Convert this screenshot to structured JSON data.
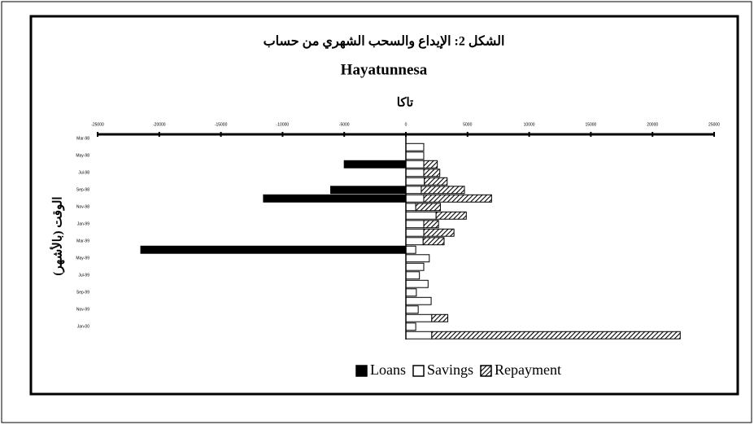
{
  "chart_data": {
    "type": "bar",
    "title": "الشكل 2: الإيداع والسحب الشهري من حساب",
    "subtitle": "Hayatunnesa",
    "x_label": "تاكا",
    "y_label": "الوقت (بالأشهر)",
    "categories": [
      "Mar-98",
      null,
      "May-98",
      null,
      "Jul-98",
      null,
      "Sep-98",
      null,
      "Nov-98",
      null,
      "Jan-99",
      null,
      "Mar-99",
      null,
      "May-99",
      null,
      "Jul-99",
      null,
      "Sep-99",
      null,
      "Nov-99",
      null,
      "Jan-00",
      null
    ],
    "series": [
      {
        "name": "Loans",
        "color": "#000000",
        "values": [
          0,
          0,
          0,
          -5000,
          0,
          0,
          -6100,
          -11550,
          0,
          0,
          0,
          0,
          0,
          -21500,
          0,
          0,
          0,
          0,
          0,
          0,
          0,
          0,
          0,
          0
        ]
      },
      {
        "name": "Savings",
        "color": "#ffffff",
        "values": [
          0,
          1450,
          1450,
          1450,
          1450,
          1500,
          1250,
          1450,
          800,
          2450,
          1450,
          1450,
          1400,
          800,
          1900,
          1450,
          1100,
          1800,
          850,
          2050,
          1000,
          2100,
          800,
          2100
        ]
      },
      {
        "name": "Repayment",
        "color": "#000000",
        "pattern": "hatch",
        "values": [
          0,
          0,
          0,
          1100,
          1300,
          1850,
          3500,
          5500,
          2000,
          2450,
          1200,
          2450,
          1700,
          0,
          0,
          0,
          0,
          0,
          0,
          0,
          0,
          1300,
          0,
          20150
        ]
      }
    ],
    "stacked": true,
    "orientation": "horizontal",
    "xlim": [
      -25000,
      25000
    ],
    "xticks": [
      -25000,
      -20000,
      -15000,
      -10000,
      -5000,
      0,
      5000,
      10000,
      15000,
      20000,
      25000
    ],
    "legend": "bottom"
  }
}
